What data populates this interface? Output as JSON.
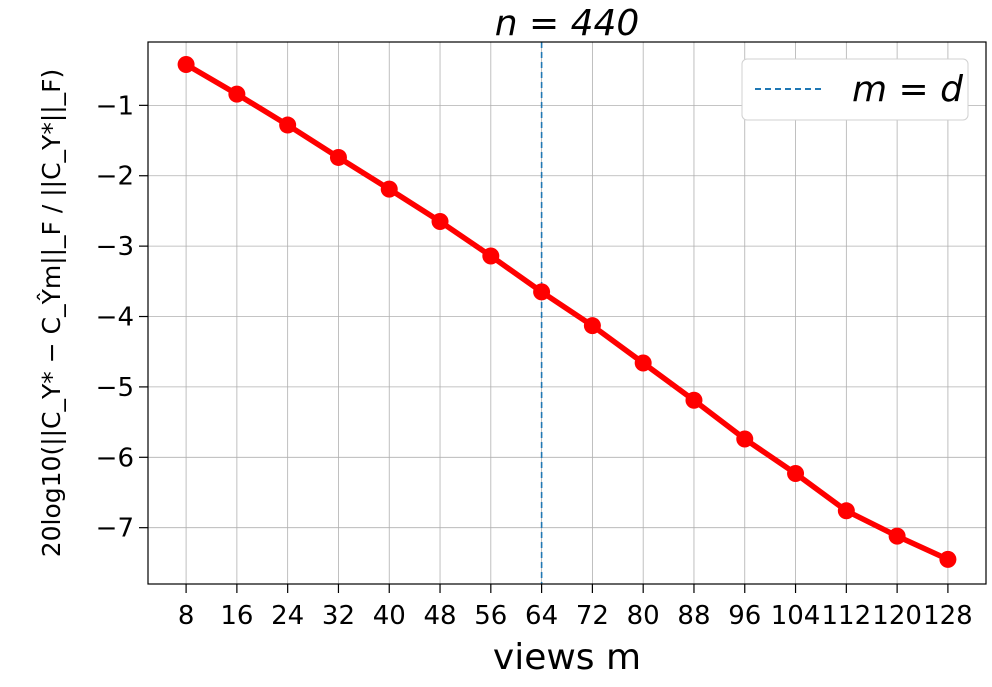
{
  "chart_data": {
    "type": "line",
    "title": "n = 440",
    "xlabel": "views m",
    "ylabel": "20log10(||C_Y* − C_Ŷm||_F / ||C_Y*||_F)",
    "x": [
      8,
      16,
      24,
      32,
      40,
      48,
      56,
      64,
      72,
      80,
      88,
      96,
      104,
      112,
      120,
      128
    ],
    "series": [
      {
        "values": [
          -0.42,
          -0.84,
          -1.28,
          -1.74,
          -2.19,
          -2.65,
          -3.14,
          -3.65,
          -4.13,
          -4.66,
          -5.19,
          -5.74,
          -6.23,
          -6.76,
          -7.12,
          -7.45
        ],
        "color": "#ff0000"
      }
    ],
    "xticks": [
      8,
      16,
      24,
      32,
      40,
      48,
      56,
      64,
      72,
      80,
      88,
      96,
      104,
      112,
      120,
      128
    ],
    "yticks": [
      -1,
      -2,
      -3,
      -4,
      -5,
      -6,
      -7
    ],
    "xlim": [
      2,
      134
    ],
    "ylim": [
      -7.8,
      -0.1
    ],
    "vline": {
      "x": 64,
      "label": "m = d",
      "color": "#1f77b4",
      "style": "dashed"
    },
    "legend": {
      "placement": "top-right",
      "entries": [
        "m = d"
      ]
    },
    "grid": true
  }
}
